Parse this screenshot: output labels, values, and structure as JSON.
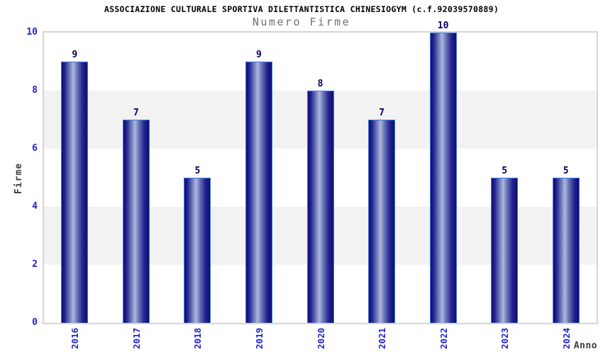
{
  "header": {
    "title": "ASSOCIAZIONE CULTURALE SPORTIVA DILETTANTISTICA CHINESIOGYM (c.f.92039570889)",
    "subtitle": "Numero Firme"
  },
  "chart_data": {
    "type": "bar",
    "title": "ASSOCIAZIONE CULTURALE SPORTIVA DILETTANTISTICA CHINESIOGYM (c.f.92039570889)",
    "subtitle": "Numero Firme",
    "xlabel": "Anno",
    "ylabel": "Firme",
    "categories": [
      "2016",
      "2017",
      "2018",
      "2019",
      "2020",
      "2021",
      "2022",
      "2023",
      "2024"
    ],
    "values": [
      9,
      7,
      5,
      9,
      8,
      7,
      10,
      5,
      5
    ],
    "ylim": [
      0,
      10
    ],
    "yticks": [
      0,
      2,
      4,
      6,
      8,
      10
    ],
    "grid": "alternating horizontal bands every 2 units (white/gray)",
    "legend": "none",
    "bar_labels_shown": true
  },
  "colors": {
    "tick_label": "#2323cc",
    "bar_value_label": "#00005f",
    "bar_border": "#3f7ae0",
    "bar_dark": "#0d0d75",
    "bar_highlight": "#aeb8dc",
    "band_gray": "#f2f2f2",
    "plot_border": "#d6d6d6",
    "title": "#000000",
    "subtitle": "#6e6e6e",
    "axis_title": "#404040",
    "background": "#ffffff"
  }
}
